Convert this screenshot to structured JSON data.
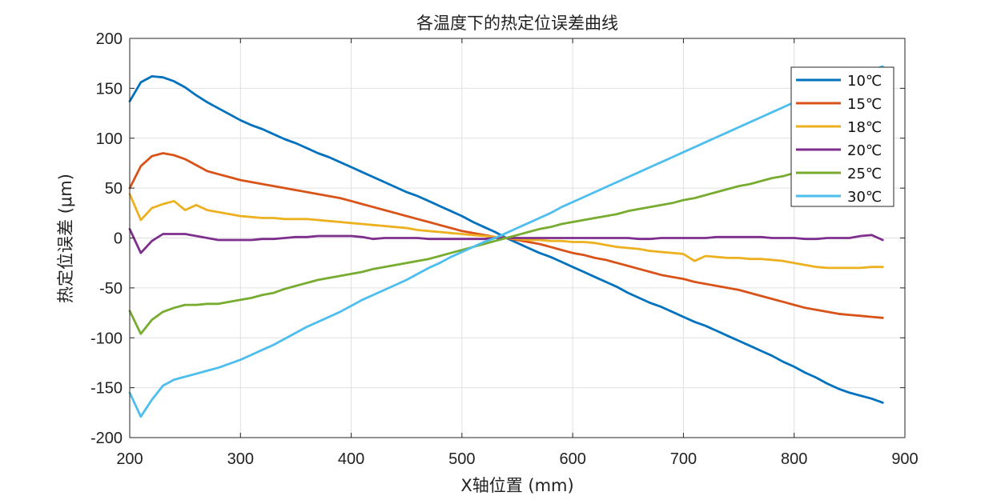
{
  "chart_data": {
    "type": "line",
    "title": "各温度下的热定位误差曲线",
    "xlabel": "X轴位置 (mm)",
    "ylabel": "热定位误差 (μm)",
    "xlim": [
      200,
      900
    ],
    "ylim": [
      -200,
      200
    ],
    "xticks": [
      200,
      300,
      400,
      500,
      600,
      700,
      800,
      900
    ],
    "yticks": [
      -200,
      -150,
      -100,
      -50,
      0,
      50,
      100,
      150,
      200
    ],
    "grid": true,
    "legend_position": "top-right",
    "x": [
      200,
      210,
      220,
      230,
      240,
      250,
      260,
      270,
      280,
      290,
      300,
      310,
      320,
      330,
      340,
      350,
      360,
      370,
      380,
      390,
      400,
      410,
      420,
      430,
      440,
      450,
      460,
      470,
      480,
      490,
      500,
      510,
      520,
      530,
      540,
      550,
      560,
      570,
      580,
      590,
      600,
      610,
      620,
      630,
      640,
      650,
      660,
      670,
      680,
      690,
      700,
      710,
      720,
      730,
      740,
      750,
      760,
      770,
      780,
      790,
      800,
      810,
      820,
      830,
      840,
      850,
      860,
      870,
      880
    ],
    "series": [
      {
        "name": "10℃",
        "color": "#0072BD",
        "values": [
          137,
          156,
          162,
          161,
          157,
          151,
          143,
          136,
          130,
          124,
          118,
          113,
          109,
          104,
          99,
          95,
          90,
          85,
          81,
          76,
          71,
          66,
          61,
          56,
          51,
          46,
          42,
          37,
          32,
          27,
          22,
          16,
          11,
          6,
          0,
          -5,
          -10,
          -15,
          -19,
          -24,
          -29,
          -34,
          -39,
          -44,
          -49,
          -55,
          -60,
          -65,
          -69,
          -74,
          -79,
          -84,
          -88,
          -93,
          -98,
          -103,
          -108,
          -113,
          -118,
          -124,
          -129,
          -135,
          -140,
          -146,
          -151,
          -155,
          -158,
          -161,
          -165
        ]
      },
      {
        "name": "15℃",
        "color": "#D95319",
        "values": [
          50,
          72,
          82,
          85,
          83,
          79,
          73,
          67,
          64,
          61,
          58,
          56,
          54,
          52,
          50,
          48,
          46,
          44,
          42,
          40,
          37,
          34,
          31,
          28,
          25,
          22,
          19,
          16,
          13,
          10,
          7,
          5,
          3,
          1,
          0,
          -2,
          -4,
          -6,
          -9,
          -12,
          -15,
          -17,
          -20,
          -22,
          -25,
          -28,
          -31,
          -34,
          -37,
          -39,
          -41,
          -44,
          -46,
          -48,
          -50,
          -52,
          -55,
          -58,
          -61,
          -64,
          -67,
          -70,
          -72,
          -74,
          -76,
          -77,
          -78,
          -79,
          -80
        ]
      },
      {
        "name": "18℃",
        "color": "#EDB120",
        "values": [
          44,
          18,
          30,
          34,
          37,
          28,
          33,
          28,
          26,
          24,
          22,
          21,
          20,
          20,
          19,
          19,
          19,
          18,
          17,
          16,
          15,
          14,
          13,
          12,
          11,
          10,
          8,
          7,
          6,
          5,
          4,
          3,
          2,
          1,
          0,
          -1,
          -2,
          -2,
          -3,
          -3,
          -4,
          -4,
          -5,
          -7,
          -9,
          -10,
          -11,
          -13,
          -14,
          -15,
          -16,
          -23,
          -18,
          -19,
          -20,
          -20,
          -21,
          -21,
          -22,
          -23,
          -25,
          -27,
          -29,
          -30,
          -30,
          -30,
          -30,
          -29,
          -29
        ]
      },
      {
        "name": "20℃",
        "color": "#7E2F8E",
        "values": [
          9,
          -15,
          -3,
          4,
          4,
          4,
          2,
          0,
          -2,
          -2,
          -2,
          -2,
          -1,
          -1,
          0,
          1,
          1,
          2,
          2,
          2,
          2,
          1,
          -1,
          0,
          0,
          0,
          0,
          -1,
          -1,
          -1,
          -1,
          -1,
          -1,
          0,
          0,
          0,
          0,
          0,
          0,
          0,
          0,
          0,
          0,
          0,
          0,
          0,
          -1,
          -1,
          0,
          0,
          0,
          0,
          0,
          1,
          1,
          1,
          1,
          1,
          0,
          0,
          0,
          -1,
          -1,
          0,
          0,
          0,
          2,
          3,
          -2
        ]
      },
      {
        "name": "25℃",
        "color": "#77AC30",
        "values": [
          -73,
          -96,
          -82,
          -74,
          -70,
          -67,
          -67,
          -66,
          -66,
          -64,
          -62,
          -60,
          -57,
          -55,
          -51,
          -48,
          -45,
          -42,
          -40,
          -38,
          -36,
          -34,
          -31,
          -29,
          -27,
          -25,
          -23,
          -21,
          -18,
          -15,
          -12,
          -9,
          -6,
          -3,
          0,
          3,
          6,
          9,
          11,
          14,
          16,
          18,
          20,
          22,
          24,
          27,
          29,
          31,
          33,
          35,
          38,
          40,
          43,
          46,
          49,
          52,
          54,
          57,
          60,
          62,
          65,
          67,
          70,
          72,
          74,
          76,
          78,
          80,
          82
        ]
      },
      {
        "name": "30℃",
        "color": "#4DBEEE",
        "values": [
          -155,
          -179,
          -162,
          -148,
          -142,
          -139,
          -136,
          -133,
          -130,
          -126,
          -122,
          -117,
          -112,
          -107,
          -101,
          -95,
          -89,
          -84,
          -79,
          -74,
          -68,
          -62,
          -57,
          -52,
          -47,
          -42,
          -36,
          -30,
          -25,
          -19,
          -14,
          -9,
          -4,
          0,
          5,
          10,
          15,
          20,
          25,
          31,
          36,
          41,
          46,
          51,
          56,
          61,
          66,
          71,
          76,
          81,
          86,
          91,
          96,
          101,
          106,
          111,
          116,
          121,
          126,
          131,
          136,
          141,
          146,
          151,
          156,
          160,
          164,
          168,
          172
        ]
      }
    ]
  }
}
